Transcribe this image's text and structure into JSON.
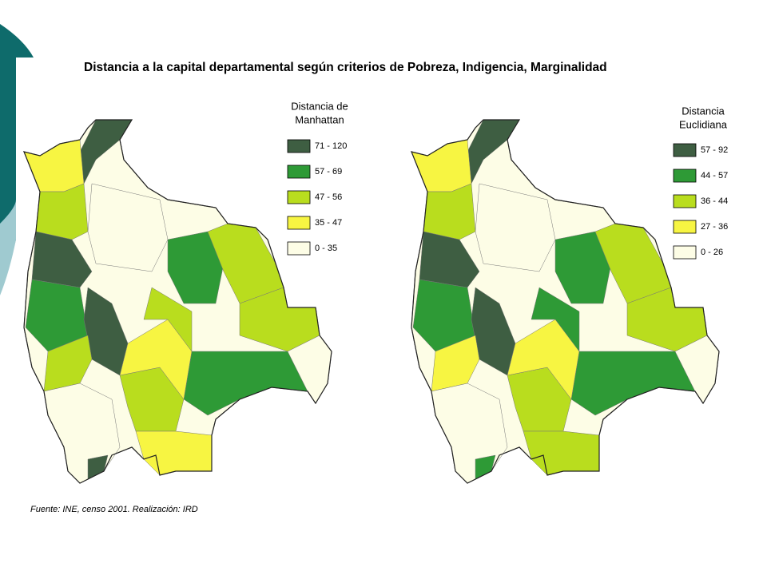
{
  "title": "Distancia a la capital departamental según criterios de Pobreza, Indigencia, Marginalidad",
  "maps": [
    {
      "legend_title": [
        "Distancia de",
        "Manhattan"
      ],
      "legend": [
        {
          "label": "71  -  120",
          "color": "#3e5e42"
        },
        {
          "label": "57  -  69",
          "color": "#2e9a36"
        },
        {
          "label": "47  -  56",
          "color": "#b9dd1e"
        },
        {
          "label": "35  -  47",
          "color": "#f7f542"
        },
        {
          "label": "0  -  35",
          "color": "#fdfde6"
        }
      ]
    },
    {
      "legend_title": [
        "Distancia",
        "Euclidiana"
      ],
      "legend": [
        {
          "label": "57  -  92",
          "color": "#3e5e42"
        },
        {
          "label": "44  -  57",
          "color": "#2e9a36"
        },
        {
          "label": "36  -  44",
          "color": "#b9dd1e"
        },
        {
          "label": "27  -  36",
          "color": "#f7f542"
        },
        {
          "label": "0  -  26",
          "color": "#fdfde6"
        }
      ]
    }
  ],
  "source": "Fuente: INE, censo 2001. Realización: IRD"
}
